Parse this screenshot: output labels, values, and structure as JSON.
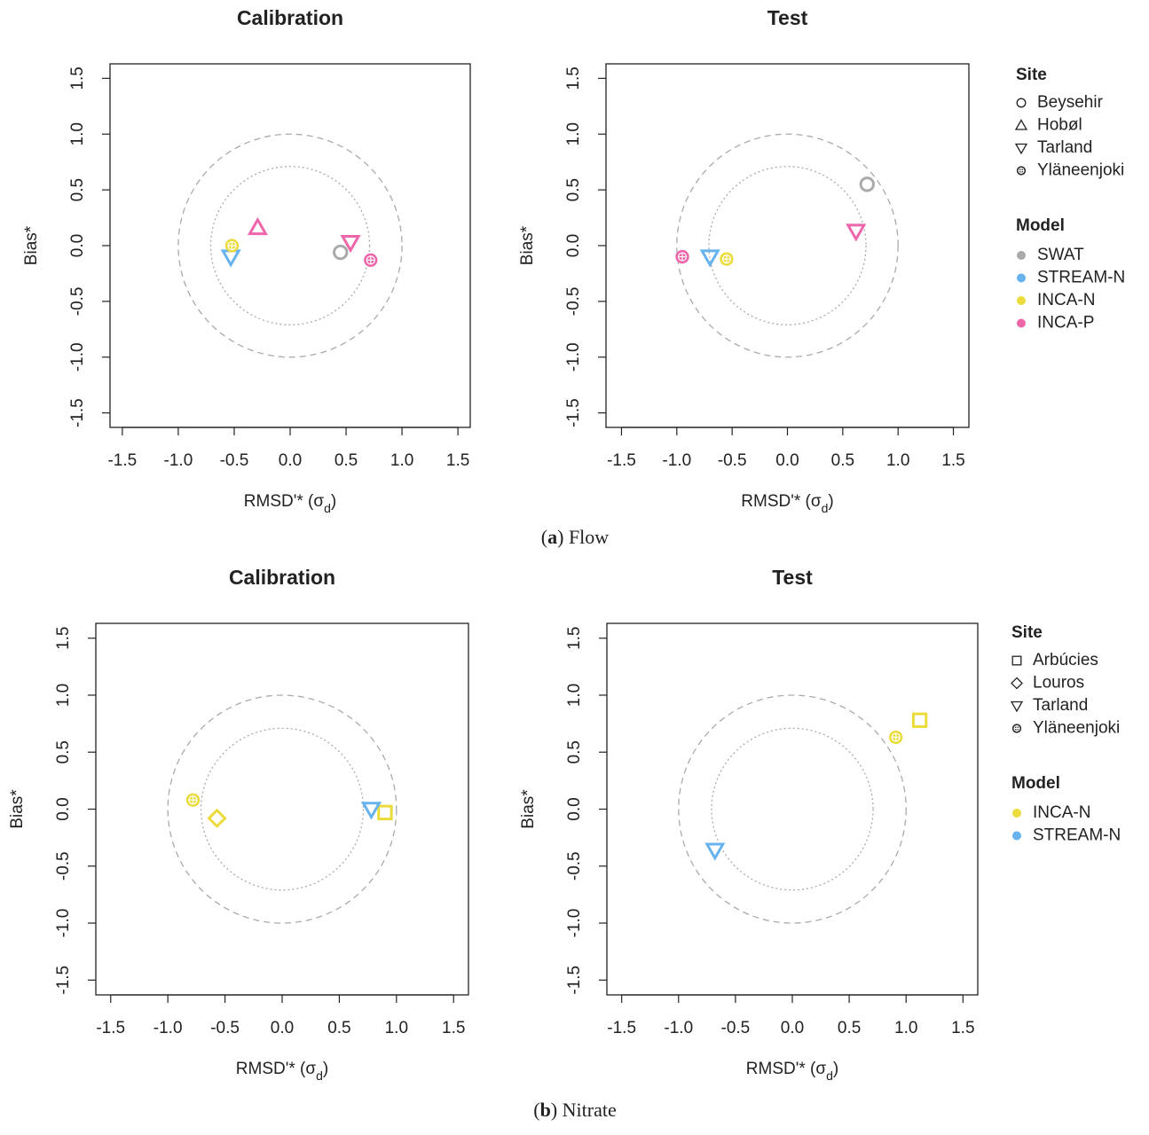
{
  "chart_data": [
    {
      "type": "scatter",
      "title": "Calibration",
      "xlabel": [
        "RMSD'* (σ",
        "d",
        ")"
      ],
      "ylabel": "Bias*",
      "xlim": [
        -1.61,
        1.61
      ],
      "ylim": [
        -1.63,
        1.63
      ],
      "xticks": [
        -1.5,
        {
          "value": -1.0,
          "label": "-1.0"
        },
        -0.5,
        {
          "value": 0.0,
          "label": "0.0"
        },
        0.5,
        {
          "value": 1.0,
          "label": "1.0"
        },
        1.5
      ],
      "yticks": [
        -1.5,
        {
          "value": -1.0,
          "label": "-1.0"
        },
        -0.5,
        {
          "value": 0.0,
          "label": "0.0"
        },
        0.5,
        {
          "value": 1.0,
          "label": "1.0"
        },
        1.5
      ],
      "reference_circles": [
        {
          "radius": 1,
          "style": "dashed"
        },
        {
          "radius": 0.71,
          "style": "dotted"
        }
      ],
      "series": [
        {
          "name": "SWAT",
          "color": "#aaaaaa",
          "x": [
            0.45
          ],
          "y": [
            -0.06
          ],
          "markers": [
            "circle"
          ]
        },
        {
          "name": "STREAM-N",
          "color": "#66b3f0",
          "x": [
            -0.53
          ],
          "y": [
            -0.1
          ],
          "markers": [
            "down-triangle"
          ]
        },
        {
          "name": "INCA-N",
          "color": "#ebdc3c",
          "x": [
            -0.52
          ],
          "y": [
            0.0
          ],
          "markers": [
            "crosshair"
          ]
        },
        {
          "name": "INCA-P",
          "color": "#ee66aa",
          "x": [
            -0.29,
            0.54,
            0.72
          ],
          "y": [
            0.16,
            0.03,
            -0.13
          ],
          "markers": [
            "triangle",
            "down-triangle",
            "crosshair"
          ]
        }
      ]
    },
    {
      "type": "scatter",
      "title": "Test",
      "xlabel": [
        "RMSD'* (σ",
        "d",
        ")"
      ],
      "ylabel": "Bias*",
      "xlim": [
        -1.64,
        1.64
      ],
      "ylim": [
        -1.63,
        1.63
      ],
      "xticks": [
        -1.5,
        {
          "value": -1.0,
          "label": "-1.0"
        },
        -0.5,
        {
          "value": 0.0,
          "label": "0.0"
        },
        0.5,
        {
          "value": 1.0,
          "label": "1.0"
        },
        1.5
      ],
      "yticks": [
        -1.5,
        {
          "value": -1.0,
          "label": "-1.0"
        },
        -0.5,
        {
          "value": 0.0,
          "label": "0.0"
        },
        0.5,
        {
          "value": 1.0,
          "label": "1.0"
        },
        1.5
      ],
      "reference_circles": [
        {
          "radius": 1,
          "style": "dashed"
        },
        {
          "radius": 0.71,
          "style": "dotted"
        }
      ],
      "series": [
        {
          "name": "SWAT",
          "color": "#aaaaaa",
          "x": [
            0.72
          ],
          "y": [
            0.55
          ],
          "markers": [
            "circle"
          ]
        },
        {
          "name": "STREAM-N",
          "color": "#66b3f0",
          "x": [
            -0.7
          ],
          "y": [
            -0.1
          ],
          "markers": [
            "down-triangle"
          ]
        },
        {
          "name": "INCA-N",
          "color": "#ebdc3c",
          "x": [
            -0.55
          ],
          "y": [
            -0.12
          ],
          "markers": [
            "crosshair"
          ]
        },
        {
          "name": "INCA-P",
          "color": "#ee66aa",
          "x": [
            -0.95,
            0.62
          ],
          "y": [
            -0.1,
            0.13
          ],
          "markers": [
            "crosshair",
            "down-triangle"
          ]
        }
      ],
      "legend": {
        "site_title": "Site",
        "sites": [
          {
            "name": "Beysehir",
            "marker": "circle"
          },
          {
            "name": "Hobøl",
            "marker": "triangle"
          },
          {
            "name": "Tarland",
            "marker": "down-triangle"
          },
          {
            "name": "Yläneenjoki",
            "marker": "crosshair"
          }
        ],
        "model_title": "Model"
      }
    },
    {
      "type": "scatter",
      "title": "Calibration",
      "xlabel": [
        "RMSD'* (σ",
        "d",
        ")"
      ],
      "ylabel": "Bias*",
      "xlim": [
        -1.63,
        1.63
      ],
      "ylim": [
        -1.63,
        1.63
      ],
      "xticks": [
        -1.5,
        {
          "value": -1.0,
          "label": "-1.0"
        },
        -0.5,
        {
          "value": 0.0,
          "label": "0.0"
        },
        0.5,
        {
          "value": 1.0,
          "label": "1.0"
        },
        1.5
      ],
      "yticks": [
        -1.5,
        {
          "value": -1.0,
          "label": "-1.0"
        },
        -0.5,
        {
          "value": 0.0,
          "label": "0.0"
        },
        0.5,
        {
          "value": 1.0,
          "label": "1.0"
        },
        1.5
      ],
      "reference_circles": [
        {
          "radius": 1,
          "style": "dashed"
        },
        {
          "radius": 0.71,
          "style": "dotted"
        }
      ],
      "series": [
        {
          "name": "INCA-N",
          "color": "#ebdc3c",
          "x": [
            -0.78,
            -0.57,
            0.9
          ],
          "y": [
            0.08,
            -0.08,
            -0.03
          ],
          "markers": [
            "crosshair",
            "diamond",
            "square"
          ]
        },
        {
          "name": "STREAM-N",
          "color": "#66b3f0",
          "x": [
            0.78
          ],
          "y": [
            0.0
          ],
          "markers": [
            "down-triangle"
          ]
        }
      ]
    },
    {
      "type": "scatter",
      "title": "Test",
      "xlabel": [
        "RMSD'* (σ",
        "d",
        ")"
      ],
      "ylabel": "Bias*",
      "xlim": [
        -1.63,
        1.63
      ],
      "ylim": [
        -1.63,
        1.63
      ],
      "xticks": [
        -1.5,
        {
          "value": -1.0,
          "label": "-1.0"
        },
        -0.5,
        {
          "value": 0.0,
          "label": "0.0"
        },
        0.5,
        {
          "value": 1.0,
          "label": "1.0"
        },
        1.5
      ],
      "yticks": [
        -1.5,
        {
          "value": -1.0,
          "label": "-1.0"
        },
        -0.5,
        {
          "value": 0.0,
          "label": "0.0"
        },
        0.5,
        {
          "value": 1.0,
          "label": "1.0"
        },
        1.5
      ],
      "reference_circles": [
        {
          "radius": 1,
          "style": "dashed"
        },
        {
          "radius": 0.71,
          "style": "dotted"
        }
      ],
      "series": [
        {
          "name": "INCA-N",
          "color": "#ebdc3c",
          "x": [
            1.12,
            0.91
          ],
          "y": [
            0.78,
            0.63
          ],
          "markers": [
            "square",
            "crosshair"
          ]
        },
        {
          "name": "STREAM-N",
          "color": "#66b3f0",
          "x": [
            -0.68
          ],
          "y": [
            -0.36
          ],
          "markers": [
            "down-triangle"
          ]
        }
      ],
      "legend": {
        "site_title": "Site",
        "sites": [
          {
            "name": "Arbúcies",
            "marker": "square"
          },
          {
            "name": "Louros",
            "marker": "diamond"
          },
          {
            "name": "Tarland",
            "marker": "down-triangle"
          },
          {
            "name": "Yläneenjoki",
            "marker": "crosshair"
          }
        ],
        "model_title": "Model"
      }
    }
  ],
  "captions": [
    [
      "(",
      "a",
      ") Flow"
    ],
    [
      "(",
      "b",
      ") Nitrate"
    ]
  ]
}
